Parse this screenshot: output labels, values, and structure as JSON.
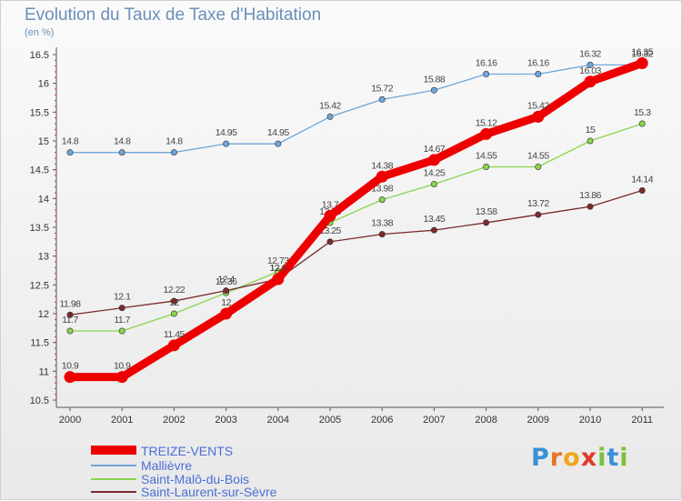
{
  "header": {
    "title": "Evolution du Taux de Taxe d'Habitation",
    "subtitle": "(en %)"
  },
  "logo": {
    "text": "Proxiti",
    "letters": [
      "P",
      "r",
      "o",
      "x",
      "i",
      "t",
      "i"
    ],
    "colors": [
      "#3a8fd8",
      "#e8742a",
      "#f2a51a",
      "#e23a2a",
      "#7cbf3a",
      "#3a8fd8",
      "#7cbf3a"
    ]
  },
  "chart_data": {
    "type": "line",
    "title": "Evolution du Taux de Taxe d'Habitation",
    "subtitle": "(en %)",
    "xlabel": "",
    "ylabel": "",
    "x": [
      "2000",
      "2001",
      "2002",
      "2003",
      "2004",
      "2005",
      "2006",
      "2007",
      "2008",
      "2009",
      "2010",
      "2011"
    ],
    "ylim": [
      10.5,
      16.5
    ],
    "yticks": [
      "10.5",
      "11",
      "11.5",
      "12",
      "12.5",
      "13",
      "13.5",
      "14",
      "14.5",
      "15",
      "15.5",
      "16",
      "16.5"
    ],
    "grid": false,
    "legend_position": "bottom-left",
    "series": [
      {
        "name": "Mallièvre",
        "color": "#6fa6d8",
        "values": [
          14.8,
          14.8,
          14.8,
          14.95,
          14.95,
          15.42,
          15.72,
          15.88,
          16.16,
          16.16,
          16.32,
          16.32
        ],
        "labels": [
          "14.8",
          "14.8",
          "14.8",
          "14.95",
          "14.95",
          "15.42",
          "15.72",
          "15.88",
          "16.16",
          "16.16",
          "16.32",
          "16.32"
        ]
      },
      {
        "name": "Saint-Malô-du-Bois",
        "color": "#8ad44e",
        "values": [
          11.7,
          11.7,
          12.0,
          12.36,
          12.73,
          13.58,
          13.98,
          14.25,
          14.55,
          14.55,
          15.0,
          15.3
        ],
        "labels": [
          "11.7",
          "11.7",
          "12",
          "12.36",
          "12.73",
          "13.58",
          "13.98",
          "14.25",
          "14.55",
          "14.55",
          "15",
          "15.3"
        ]
      },
      {
        "name": "Saint-Laurent-sur-Sèvre",
        "color": "#7a2a2a",
        "values": [
          11.98,
          12.1,
          12.22,
          12.4,
          12.6,
          13.25,
          13.38,
          13.45,
          13.58,
          13.72,
          13.86,
          14.14
        ],
        "labels": [
          "11.98",
          "12.1",
          "12.22",
          "12.4",
          "12.6",
          "13.25",
          "13.38",
          "13.45",
          "13.58",
          "13.72",
          "13.86",
          "14.14"
        ]
      },
      {
        "name": "TREIZE-VENTS",
        "color": "#ee0000",
        "values": [
          10.9,
          10.9,
          11.45,
          12.0,
          12.6,
          13.7,
          14.38,
          14.67,
          15.12,
          15.42,
          16.03,
          16.35
        ],
        "labels": [
          "10.9",
          "10.9",
          "11.45",
          "12",
          "12.6",
          "13.7",
          "14.38",
          "14.67",
          "15.12",
          "15.42",
          "16.03",
          "16.35"
        ]
      }
    ],
    "legend": [
      "TREIZE-VENTS",
      "Mallièvre",
      "Saint-Malô-du-Bois",
      "Saint-Laurent-sur-Sèvre"
    ]
  }
}
